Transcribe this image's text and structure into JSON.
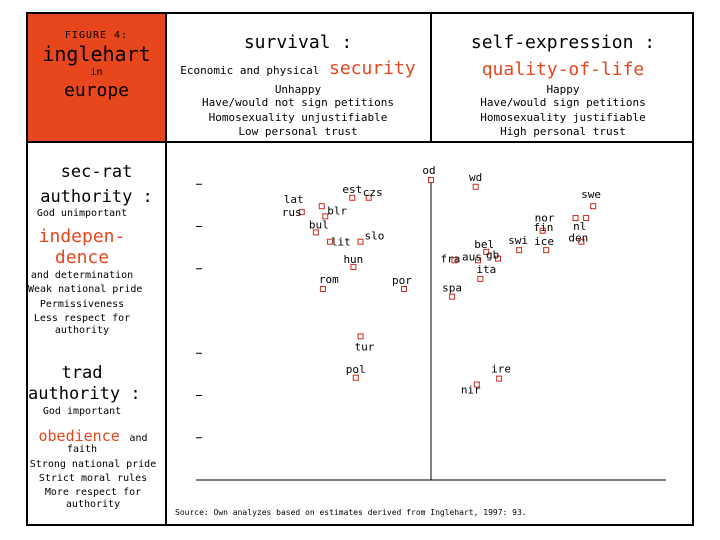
{
  "header": {
    "figure_label": "FIGURE 4:",
    "title_line1": "inglehart",
    "title_in": "in",
    "title_line2": "europe",
    "survival_title": "survival :",
    "survival_sub1": "Economic and physical",
    "survival_sub2": "security",
    "survival_items": [
      "Unhappy",
      "Have/would not sign petitions",
      "Homosexuality unjustifiable",
      "Low personal trust"
    ],
    "selfexp_title": "self-expression :",
    "selfexp_sub": "quality-of-life",
    "selfexp_items": [
      "Happy",
      "Have/would sign petitions",
      "Homosexuality justifiable",
      "High personal trust"
    ]
  },
  "left_panel": {
    "secrat_title1": "sec-rat",
    "secrat_title2": "authority :",
    "secrat_god": "God unimportant",
    "indep1": "indepen-",
    "indep2": "dence",
    "secrat_items": [
      "and determination",
      "Weak national pride",
      "Permissiveness",
      "Less respect for",
      "authority"
    ],
    "trad_title1": "trad",
    "trad_title2": "authority :",
    "trad_god": "God important",
    "obedience": "obedience",
    "obedience_and": "and",
    "trad_items": [
      "faith",
      "Strong national pride",
      "Strict moral rules",
      "More respect for",
      "authority"
    ]
  },
  "colors": {
    "accent": "#e8461c",
    "marker": "#cc2b1d"
  },
  "source_note": "Source: Own analyzes based on estimates derived from Inglehart, 1997: 93.",
  "chart_data": {
    "type": "scatter",
    "title": "inglehart in europe",
    "xlabel": "survival : self-expression",
    "ylabel": "trad authority : sec-rat authority",
    "xlim": [
      -2.0,
      2.0
    ],
    "ylim": [
      -2.0,
      2.0
    ],
    "yticks": [
      -2.0,
      -1.5,
      -1.0,
      -0.5,
      0.5,
      1.0,
      1.5
    ],
    "points": [
      {
        "label": "od",
        "x": 0.0,
        "y": 1.55
      },
      {
        "label": "wd",
        "x": 0.38,
        "y": 1.47
      },
      {
        "label": "est",
        "x": -0.67,
        "y": 1.34
      },
      {
        "label": "czs",
        "x": -0.53,
        "y": 1.34
      },
      {
        "label": "lat",
        "x": -0.93,
        "y": 1.24
      },
      {
        "label": "rus",
        "x": -1.1,
        "y": 1.17
      },
      {
        "label": "blr",
        "x": -0.9,
        "y": 1.12
      },
      {
        "label": "swe",
        "x": 1.38,
        "y": 1.24
      },
      {
        "label": "fin",
        "x": 1.23,
        "y": 1.1
      },
      {
        "label": "nl",
        "x": 1.32,
        "y": 1.1
      },
      {
        "label": "nor",
        "x": 0.95,
        "y": 0.95
      },
      {
        "label": "bul",
        "x": -0.98,
        "y": 0.93
      },
      {
        "label": "den",
        "x": 1.28,
        "y": 0.82
      },
      {
        "label": "lit",
        "x": -0.86,
        "y": 0.82
      },
      {
        "label": "slo",
        "x": -0.6,
        "y": 0.82
      },
      {
        "label": "swi",
        "x": 0.75,
        "y": 0.72
      },
      {
        "label": "ice",
        "x": 0.98,
        "y": 0.72
      },
      {
        "label": "bel",
        "x": 0.47,
        "y": 0.7
      },
      {
        "label": "gb",
        "x": 0.57,
        "y": 0.62
      },
      {
        "label": "fra",
        "x": 0.2,
        "y": 0.6
      },
      {
        "label": "aus",
        "x": 0.4,
        "y": 0.6
      },
      {
        "label": "hun",
        "x": -0.66,
        "y": 0.52
      },
      {
        "label": "ita",
        "x": 0.42,
        "y": 0.38
      },
      {
        "label": "rom",
        "x": -0.92,
        "y": 0.26
      },
      {
        "label": "por",
        "x": -0.23,
        "y": 0.26
      },
      {
        "label": "spa",
        "x": 0.18,
        "y": 0.17
      },
      {
        "label": "tur",
        "x": -0.6,
        "y": -0.3
      },
      {
        "label": "pol",
        "x": -0.64,
        "y": -0.79
      },
      {
        "label": "ire",
        "x": 0.58,
        "y": -0.8
      },
      {
        "label": "nir",
        "x": 0.39,
        "y": -0.87
      }
    ]
  }
}
